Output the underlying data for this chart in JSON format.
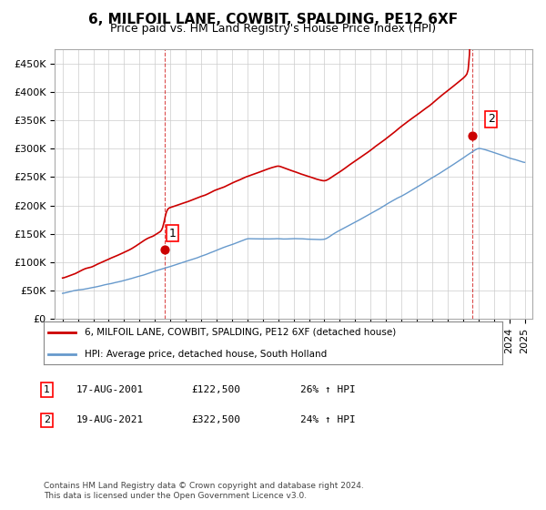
{
  "title": "6, MILFOIL LANE, COWBIT, SPALDING, PE12 6XF",
  "subtitle": "Price paid vs. HM Land Registry's House Price Index (HPI)",
  "ylabel_ticks": [
    "£0",
    "£50K",
    "£100K",
    "£150K",
    "£200K",
    "£250K",
    "£300K",
    "£350K",
    "£400K",
    "£450K"
  ],
  "ylim": [
    0,
    475000
  ],
  "xlim_start": 1995.0,
  "xlim_end": 2025.5,
  "red_color": "#cc0000",
  "blue_color": "#6699cc",
  "marker1_year": 2001.625,
  "marker1_value": 122500,
  "marker1_label": "1",
  "marker2_year": 2021.625,
  "marker2_value": 322500,
  "marker2_label": "2",
  "legend_line1": "6, MILFOIL LANE, COWBIT, SPALDING, PE12 6XF (detached house)",
  "legend_line2": "HPI: Average price, detached house, South Holland",
  "ann1_text": "17-AUG-2001        £122,500        26% ↑ HPI",
  "ann2_text": "19-AUG-2021        £322,500        24% ↑ HPI",
  "footnote": "Contains HM Land Registry data © Crown copyright and database right 2024.\nThis data is licensed under the Open Government Licence v3.0.",
  "bg_color": "#ffffff",
  "grid_color": "#cccccc"
}
